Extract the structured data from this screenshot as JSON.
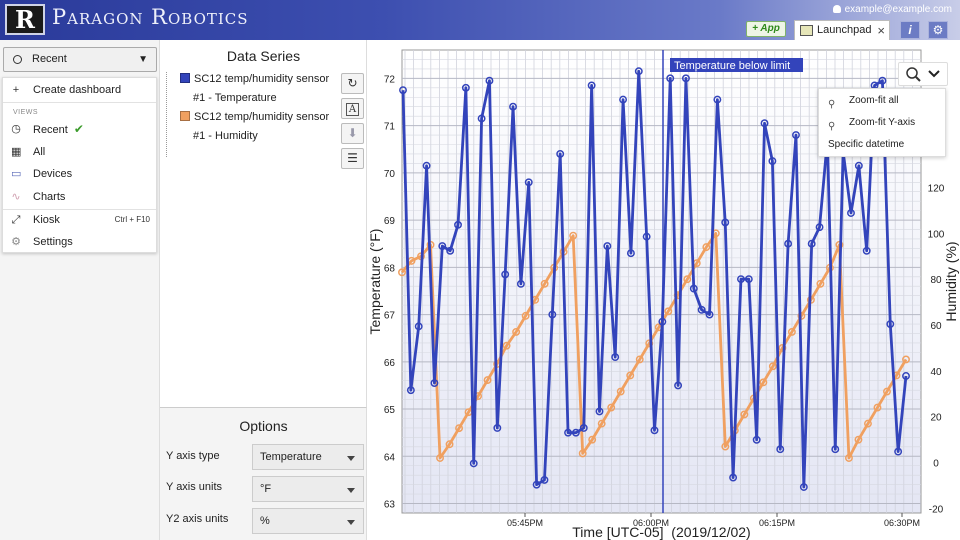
{
  "header": {
    "logo_text": "R",
    "brand": "Paragon Robotics",
    "user_email": "example@example.com",
    "app_button": "+ App",
    "tab_label": "Launchpad",
    "tab_close": "×",
    "info_icon": "i",
    "settings_icon": "⚙"
  },
  "sidebar": {
    "dropdown_label": "Recent",
    "menu": {
      "create_dashboard": "Create dashboard",
      "views_label": "VIEWS",
      "recent": "Recent",
      "all": "All",
      "devices": "Devices",
      "charts": "Charts",
      "kiosk": "Kiosk",
      "kiosk_shortcut": "Ctrl + F10",
      "settings": "Settings"
    }
  },
  "data_series": {
    "title": "Data Series",
    "items": [
      {
        "line1": "SC12 temp/humidity sensor",
        "line2": "#1 - Temperature",
        "color": "#3344bb"
      },
      {
        "line1": "SC12 temp/humidity sensor",
        "line2": "#1 - Humidity",
        "color": "#f0a060"
      }
    ]
  },
  "options": {
    "title": "Options",
    "rows": [
      {
        "label": "Y axis type",
        "value": "Temperature"
      },
      {
        "label": "Y axis units",
        "value": "°F"
      },
      {
        "label": "Y2 axis units",
        "value": "%"
      }
    ]
  },
  "zoom_menu": {
    "zoom_fit_all": "Zoom-fit all",
    "zoom_fit_y": "Zoom-fit Y-axis",
    "specific_datetime": "Specific datetime"
  },
  "chart_data": {
    "type": "line",
    "xlabel": "Time [UTC-05]  (2019/12/02)",
    "ylabel": "Temperature (°F)",
    "y2label": "Humidity (%)",
    "x_ticks": [
      "05:45PM",
      "06:00PM",
      "06:15PM",
      "06:30PM"
    ],
    "y_ticks": [
      63,
      64,
      65,
      66,
      67,
      68,
      69,
      70,
      71,
      72
    ],
    "y2_ticks": [
      -20,
      0,
      20,
      40,
      60,
      80,
      100,
      120
    ],
    "ylim": [
      62.8,
      72.6
    ],
    "y2lim": [
      -22,
      180
    ],
    "annotation": "Temperature below limit",
    "series": [
      {
        "name": "SC12 temp/humidity sensor #1 - Temperature",
        "axis": "y",
        "color": "#3344bb",
        "values": [
          71.75,
          65.4,
          66.75,
          70.15,
          65.55,
          68.45,
          68.35,
          68.9,
          71.8,
          63.85,
          71.15,
          71.95,
          64.6,
          67.85,
          71.4,
          67.65,
          69.8,
          63.4,
          63.5,
          67.0,
          70.4,
          64.5,
          64.5,
          64.6,
          71.85,
          64.95,
          68.45,
          66.1,
          71.55,
          68.3,
          72.15,
          68.65,
          64.55,
          66.85,
          72.0,
          65.5,
          72.0,
          67.55,
          67.1,
          67.0,
          71.55,
          68.95,
          63.55,
          67.75,
          67.75,
          64.35,
          71.05,
          70.25,
          64.15,
          68.5,
          70.8,
          63.35,
          68.5,
          68.85,
          70.7,
          64.15,
          70.45,
          69.15,
          70.15,
          68.35,
          71.85,
          71.95,
          66.8,
          64.1,
          65.7
        ]
      },
      {
        "name": "SC12 temp/humidity sensor #1 - Humidity",
        "axis": "y2",
        "color": "#f0a060",
        "values": [
          83,
          88,
          90,
          95,
          2,
          8,
          15,
          22,
          29,
          36,
          43,
          51,
          57,
          64,
          71,
          78,
          85,
          92,
          99,
          4,
          10,
          17,
          24,
          31,
          38,
          45,
          52,
          59,
          66,
          73,
          80,
          87,
          94,
          100,
          7,
          14,
          21,
          28,
          35,
          42,
          50,
          57,
          64,
          71,
          78,
          85,
          95,
          2,
          10,
          17,
          24,
          31,
          38,
          45
        ]
      }
    ]
  }
}
